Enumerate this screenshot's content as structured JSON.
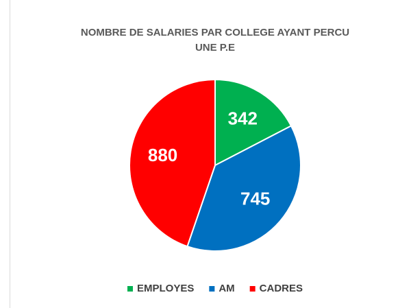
{
  "chart_data": {
    "type": "pie",
    "title": [
      "NOMBRE DE SALARIES PAR COLLEGE AYANT PERCU",
      "UNE P.E"
    ],
    "categories": [
      "EMPLOYES",
      "AM",
      "CADRES"
    ],
    "values": [
      342,
      745,
      880
    ],
    "colors": [
      "#00b050",
      "#0070c0",
      "#ff0000"
    ],
    "legend": "bottom"
  }
}
